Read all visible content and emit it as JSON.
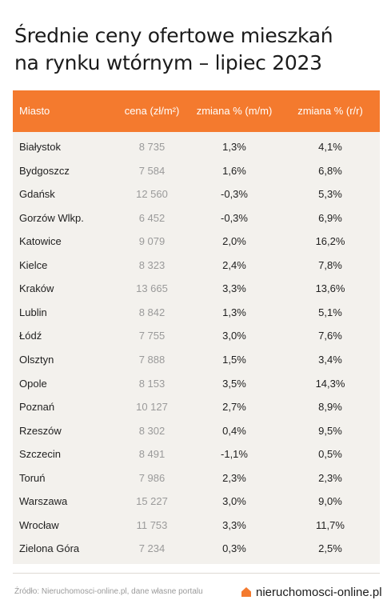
{
  "title_line1": "Średnie ceny ofertowe mieszkań",
  "title_line2": "na rynku wtórnym – lipiec 2023",
  "colors": {
    "header_bg": "#f47a2e",
    "panel_bg": "#f3f1ed",
    "logo_accent": "#f47a2e"
  },
  "chart_data": {
    "type": "table",
    "columns": [
      "Miasto",
      "cena (zł/m²)",
      "zmiana % (m/m)",
      "zmiana % (r/r)"
    ],
    "rows": [
      [
        "Białystok",
        "8 735",
        "1,3%",
        "4,1%"
      ],
      [
        "Bydgoszcz",
        "7 584",
        "1,6%",
        "6,8%"
      ],
      [
        "Gdańsk",
        "12 560",
        "-0,3%",
        "5,3%"
      ],
      [
        "Gorzów Wlkp.",
        "6 452",
        "-0,3%",
        "6,9%"
      ],
      [
        "Katowice",
        "9 079",
        "2,0%",
        "16,2%"
      ],
      [
        "Kielce",
        "8 323",
        "2,4%",
        "7,8%"
      ],
      [
        "Kraków",
        "13 665",
        "3,3%",
        "13,6%"
      ],
      [
        "Lublin",
        "8 842",
        "1,3%",
        "5,1%"
      ],
      [
        "Łódź",
        "7 755",
        "3,0%",
        "7,6%"
      ],
      [
        "Olsztyn",
        "7 888",
        "1,5%",
        "3,4%"
      ],
      [
        "Opole",
        "8 153",
        "3,5%",
        "14,3%"
      ],
      [
        "Poznań",
        "10 127",
        "2,7%",
        "8,9%"
      ],
      [
        "Rzeszów",
        "8 302",
        "0,4%",
        "9,5%"
      ],
      [
        "Szczecin",
        "8 491",
        "-1,1%",
        "0,5%"
      ],
      [
        "Toruń",
        "7 986",
        "2,3%",
        "2,3%"
      ],
      [
        "Warszawa",
        "15 227",
        "3,0%",
        "9,0%"
      ],
      [
        "Wrocław",
        "11 753",
        "3,3%",
        "11,7%"
      ],
      [
        "Zielona Góra",
        "7 234",
        "0,3%",
        "2,5%"
      ]
    ]
  },
  "source": "Źródło: Nieruchomosci-online.pl, dane własne portalu",
  "logo": {
    "text": "nieruchomosci-online.pl",
    "icon": "house-icon"
  }
}
